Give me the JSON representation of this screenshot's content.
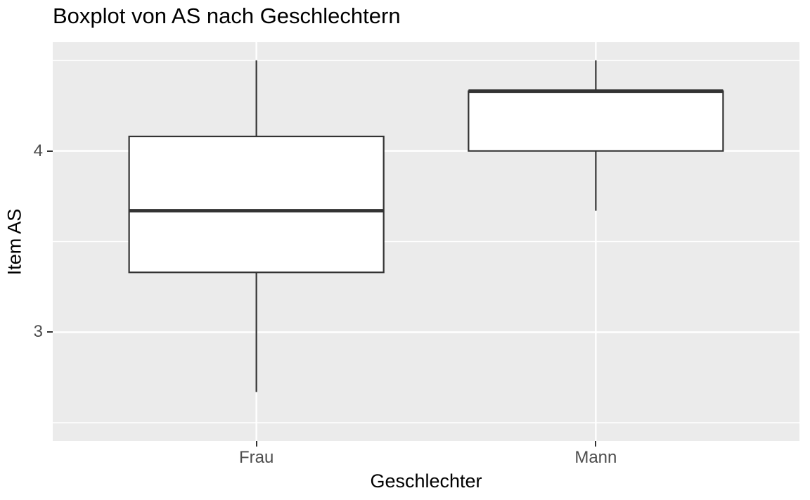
{
  "chart_data": {
    "type": "boxplot",
    "title": "Boxplot von AS nach Geschlechtern",
    "xlabel": "Geschlechter",
    "ylabel": "Item AS",
    "categories": [
      "Frau",
      "Mann"
    ],
    "series": [
      {
        "name": "Frau",
        "min": 2.67,
        "q1": 3.33,
        "median": 3.67,
        "q3": 4.08,
        "max": 4.5
      },
      {
        "name": "Mann",
        "min": 3.67,
        "q1": 4.0,
        "median": 4.33,
        "q3": 4.33,
        "max": 4.5
      }
    ],
    "ylim": [
      2.4,
      4.6
    ],
    "yticks_major": [
      3,
      4
    ],
    "yticks_minor": [
      2.5,
      3.5,
      4.5
    ],
    "ytick_labels": [
      "3",
      "4"
    ],
    "grid": "major-and-minor-horizontal, major-vertical-per-category",
    "legend": "none",
    "style": "ggplot2-theme-grey"
  },
  "colors": {
    "panel_background": "#EBEBEB",
    "gridline": "#FFFFFF",
    "box_stroke": "#333333",
    "box_fill": "#FFFFFF",
    "tick_mark": "#333333",
    "tick_label": "#4D4D4D",
    "title_text": "#000000",
    "axis_title_text": "#000000"
  }
}
